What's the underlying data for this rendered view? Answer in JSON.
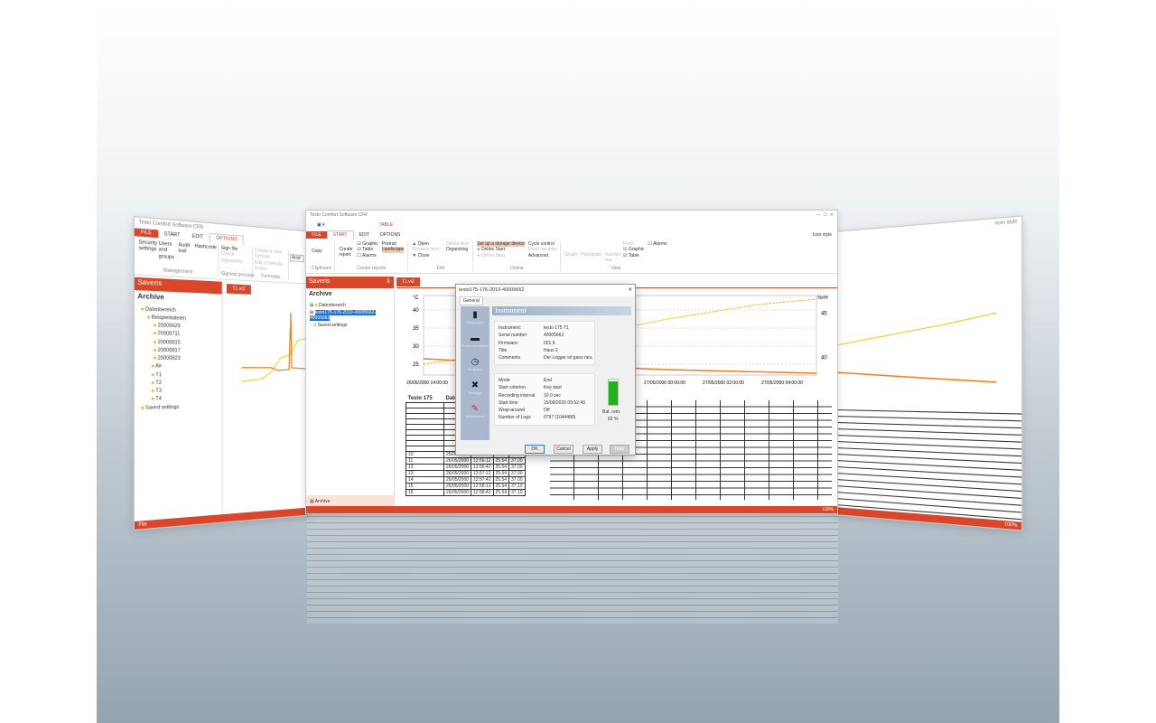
{
  "app_title": "Testo Comfort Software CFR",
  "ribbon_tabs": {
    "file": "FILE",
    "start": "START",
    "edit": "EDIT",
    "options": "OPTIONS",
    "table": "TABLE"
  },
  "ribbon": {
    "copy": "Copy",
    "clipboard": "Clipboard",
    "create_report": "Create report",
    "graphic": "Graphic",
    "table": "Table",
    "alarms": "Alarms",
    "portrait": "Portrait",
    "landscape": "Landscape",
    "create_reports": "Create reports",
    "open": "Open",
    "close": "Close",
    "delete_item": "Delete item",
    "rename_item": "Rename item",
    "organizing": "Organizing",
    "edit": "Edit",
    "setup_storage": "Set up a storage device",
    "online_start": "Online Start",
    "online_stop": "Online Stop",
    "cycle_control": "Cycle control",
    "read_out_data": "Read out data",
    "advanced": "Advanced",
    "online": "Online",
    "graph": "Graph",
    "histogram": "Histogram",
    "number_box": "Number box",
    "form": "Form",
    "view_alarms": "Alarms",
    "view_graphic": "Graphic",
    "view_table": "Table",
    "view": "View",
    "icon_style": "Icon style"
  },
  "left_ribbon": {
    "security": "Security settings",
    "users": "Users and groups",
    "audit": "Audit trail",
    "hashcode": "Hashcode",
    "management": "Management",
    "sign_file": "Sign file",
    "check_signatures": "Check signatures",
    "signing": "Signing process",
    "create_formula": "Create a new formula",
    "edit_formula": "Edit a formula",
    "erase": "Erase",
    "formulas": "Formulas",
    "font": "Arial"
  },
  "sidebar": {
    "title": "Saveris",
    "archive": "Archive",
    "footer": "Archive",
    "center_items": [
      "Datenbereich",
      "testo175-176-2010-40005662- 40005662",
      "Saved settings"
    ],
    "left_items": [
      "Datenbereich",
      "Beispieldateien",
      "20000629",
      "20000711",
      "20000815",
      "20000817",
      "20000823",
      "Air",
      "T1",
      "T2",
      "T3",
      "T4",
      "Saved settings"
    ]
  },
  "doc_tab": "T1.vi2",
  "chart_data": {
    "type": "line",
    "ylabel_left": "°C",
    "ylabel_right": "%rH",
    "yticks_left": [
      25,
      30,
      35,
      40
    ],
    "yticks_right": [
      40,
      45
    ],
    "xticks": [
      "26/05/2000 14:00:00",
      "27/05/2000 00:00:00",
      "27/05/2000 02:00:00",
      "27/05/2000 04:00:00"
    ],
    "series": [
      {
        "color": "#f5c518"
      },
      {
        "color": "#f07f1a"
      }
    ]
  },
  "table": {
    "headers": [
      "Testo 175",
      "Date",
      "Time",
      "",
      ""
    ],
    "rows": [
      [
        "10",
        "26/05/2000",
        "12:55:42",
        "25.54",
        "36.90"
      ],
      [
        "11",
        "26/05/2000",
        "12:56:12",
        "25.54",
        "37.00"
      ],
      [
        "12",
        "26/05/2000",
        "12:56:42",
        "25.54",
        "37.00"
      ],
      [
        "13",
        "26/05/2000",
        "12:57:12",
        "25.54",
        "37.00"
      ],
      [
        "14",
        "26/05/2000",
        "12:57:42",
        "25.54",
        "37.00"
      ],
      [
        "15",
        "26/05/2000",
        "12:58:12",
        "25.54",
        "37.10"
      ],
      [
        "16",
        "26/05/2000",
        "12:58:42",
        "25.54",
        "37.10"
      ]
    ]
  },
  "dialog": {
    "title": "testo175-176-2010-40005662",
    "tab": "General",
    "section": "Instrument",
    "nav": [
      "Instrument",
      "Probe connection",
      "Program",
      "Settings",
      "Adjustment"
    ],
    "info": [
      [
        "Instrument:",
        "testo 175 T1"
      ],
      [
        "Serial number:",
        "40005662"
      ],
      [
        "Firmware:",
        "001.5"
      ],
      [
        "Title",
        "Haus 2"
      ],
      [
        "Comments",
        "Der Logger ist ganz neu."
      ]
    ],
    "status": [
      [
        "Mode",
        "End"
      ],
      [
        "Start criterion",
        "Key start"
      ],
      [
        "Recording interval",
        "10.0 sec"
      ],
      [
        "Start time",
        "15/09/2020 09:52:43"
      ],
      [
        "Wrap-around",
        "Off"
      ],
      [
        "Number of Logs",
        "0797 (1044480)"
      ]
    ],
    "battery_label": "Bat. rem.",
    "battery_value": "92 %",
    "battery_fraction": 0.92,
    "ok": "OK",
    "cancel": "Cancel",
    "apply": "Apply",
    "help": "Help"
  },
  "zoom": "100%",
  "left_status": "File"
}
